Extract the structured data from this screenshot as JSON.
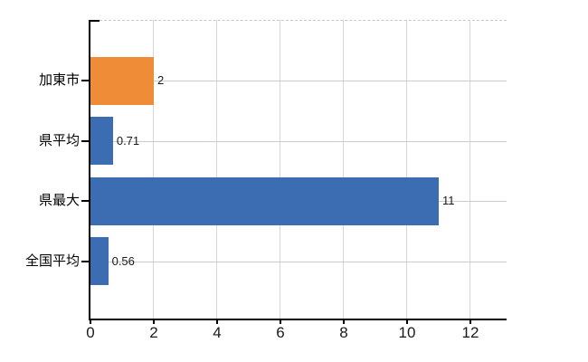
{
  "chart_data": {
    "type": "bar",
    "orientation": "horizontal",
    "title": "",
    "xlabel": "",
    "ylabel": "",
    "categories": [
      "加東市",
      "県平均",
      "県最大",
      "全国平均"
    ],
    "values": [
      2,
      0.71,
      11,
      0.56
    ],
    "value_labels": [
      "2",
      "0.71",
      "11",
      "0.56"
    ],
    "bar_colors": [
      "#ee8c37",
      "#3c6db3",
      "#3c6db3",
      "#3c6db3"
    ],
    "highlighted_category": "加東市",
    "x_ticks": [
      0,
      2,
      4,
      6,
      8,
      10,
      12
    ],
    "x_tick_labels": [
      "0",
      "2",
      "4",
      "6",
      "8",
      "10",
      "12"
    ],
    "xlim": [
      0,
      13.15
    ],
    "grid": true,
    "legend": false
  },
  "colors": {
    "highlight_bar": "#ee8c37",
    "default_bar": "#3c6db3",
    "grid_vertical": "#d6d6de",
    "grid_horizontal": "#c6cfc6",
    "top_border": "#c9c9cb",
    "axis": "#000000",
    "text": "#1a1a1a",
    "background": "#ffffff"
  }
}
